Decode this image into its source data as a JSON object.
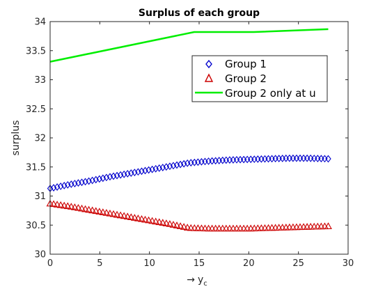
{
  "chart_data": {
    "type": "scatter",
    "title": "Surplus of each group",
    "xlabel_arrow": "→",
    "xlabel_main": "y",
    "xlabel_sub": "c",
    "ylabel": "surplus",
    "xlim": [
      0,
      30
    ],
    "ylim": [
      30,
      34
    ],
    "xticks": [
      "0",
      "5",
      "10",
      "15",
      "20",
      "25",
      "30"
    ],
    "yticks": [
      "30",
      "30.5",
      "31",
      "31.5",
      "32",
      "32.5",
      "33",
      "33.5",
      "34"
    ],
    "grid": false,
    "legend_position": "top-right",
    "series": [
      {
        "name": "Group 1",
        "marker": "diamond",
        "color": "#0000cc",
        "x": [
          0,
          2,
          4,
          6,
          8,
          10,
          12,
          14,
          16,
          18,
          20,
          22,
          24,
          26,
          28
        ],
        "y": [
          31.13,
          31.2,
          31.26,
          31.33,
          31.39,
          31.45,
          31.51,
          31.57,
          31.6,
          31.62,
          31.63,
          31.64,
          31.65,
          31.65,
          31.64
        ]
      },
      {
        "name": "Group 2",
        "marker": "triangle",
        "color": "#cc0000",
        "x": [
          0,
          2,
          4,
          6,
          8,
          10,
          12,
          14,
          16,
          18,
          20,
          22,
          24,
          26,
          28
        ],
        "y": [
          30.87,
          30.82,
          30.76,
          30.7,
          30.64,
          30.58,
          30.52,
          30.45,
          30.44,
          30.44,
          30.44,
          30.45,
          30.46,
          30.47,
          30.48
        ]
      },
      {
        "name": "Group 2 only at u",
        "marker": "line",
        "color": "#00ee00",
        "x": [
          0,
          14.5,
          20.5,
          28
        ],
        "y": [
          33.31,
          33.82,
          33.82,
          33.87
        ]
      }
    ]
  }
}
